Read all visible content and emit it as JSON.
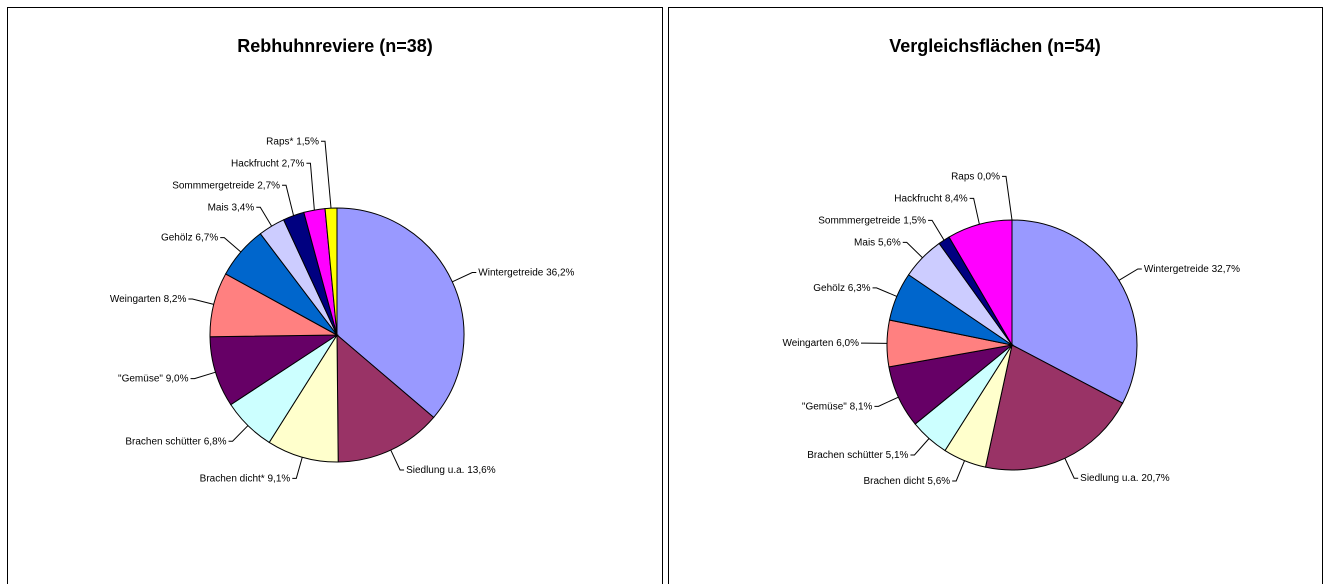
{
  "chart_data": [
    {
      "type": "pie",
      "title": "Rebhuhnreviere (n=38)",
      "categories": [
        "Wintergetreide",
        "Siedlung u.a.",
        "Brachen dicht*",
        "Brachen schütter",
        "\"Gemüse\"",
        "Weingarten",
        "Gehölz",
        "Mais",
        "Sommmergetreide",
        "Hackfrucht",
        "Raps*"
      ],
      "values": [
        36.2,
        13.6,
        9.1,
        6.8,
        9.0,
        8.2,
        6.7,
        3.4,
        2.7,
        2.7,
        1.5
      ],
      "value_labels": [
        "36,2%",
        "13,6%",
        "9,1%",
        "6,8%",
        "9,0%",
        "8,2%",
        "6,7%",
        "3,4%",
        "2,7%",
        "2,7%",
        "1,5%"
      ],
      "colors": [
        "#9999ff",
        "#993366",
        "#ffffcc",
        "#ccffff",
        "#660066",
        "#ff8080",
        "#0066cc",
        "#ccccff",
        "#000080",
        "#ff00ff",
        "#ffff00"
      ]
    },
    {
      "type": "pie",
      "title": "Vergleichsflächen (n=54)",
      "categories": [
        "Wintergetreide",
        "Siedlung u.a.",
        "Brachen dicht",
        "Brachen schütter",
        "\"Gemüse\"",
        "Weingarten",
        "Gehölz",
        "Mais",
        "Sommmergetreide",
        "Hackfrucht",
        "Raps"
      ],
      "values": [
        32.7,
        20.7,
        5.6,
        5.1,
        8.1,
        6.0,
        6.3,
        5.6,
        1.5,
        8.4,
        0.0
      ],
      "value_labels": [
        "32,7%",
        "20,7%",
        "5,6%",
        "5,1%",
        "8,1%",
        "6,0%",
        "6,3%",
        "5,6%",
        "1,5%",
        "8,4%",
        "0,0%"
      ],
      "colors": [
        "#9999ff",
        "#993366",
        "#ffffcc",
        "#ccffff",
        "#660066",
        "#ff8080",
        "#0066cc",
        "#ccccff",
        "#000080",
        "#ff00ff",
        "#ffff00"
      ]
    }
  ]
}
